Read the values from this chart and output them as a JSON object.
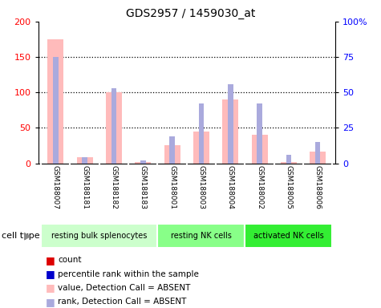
{
  "title": "GDS2957 / 1459030_at",
  "samples": [
    "GSM188007",
    "GSM188181",
    "GSM188182",
    "GSM188183",
    "GSM188001",
    "GSM188003",
    "GSM188004",
    "GSM188002",
    "GSM188005",
    "GSM188006"
  ],
  "value_absent": [
    175,
    8,
    100,
    2,
    25,
    45,
    90,
    40,
    2,
    17
  ],
  "rank_absent": [
    75,
    4,
    53,
    2,
    19,
    42,
    56,
    42,
    6,
    15
  ],
  "groups": [
    {
      "label": "resting bulk splenocytes",
      "start": 0,
      "end": 4,
      "color": "#ccffcc"
    },
    {
      "label": "resting NK cells",
      "start": 4,
      "end": 7,
      "color": "#88ff88"
    },
    {
      "label": "activated NK cells",
      "start": 7,
      "end": 10,
      "color": "#33ee33"
    }
  ],
  "ylim_left": [
    0,
    200
  ],
  "ylim_right": [
    0,
    100
  ],
  "yticks_left": [
    0,
    50,
    100,
    150,
    200
  ],
  "yticks_right": [
    0,
    25,
    50,
    75,
    100
  ],
  "ytick_labels_right": [
    "0",
    "25",
    "50",
    "75",
    "100%"
  ],
  "color_value_absent": "#ffbbbb",
  "color_rank_absent": "#aaaadd",
  "color_count": "#dd0000",
  "color_percentile": "#0000cc",
  "background_color": "#ffffff",
  "sample_bg_color": "#d3d3d3",
  "pink_bar_width": 0.55,
  "blue_bar_width": 0.18
}
